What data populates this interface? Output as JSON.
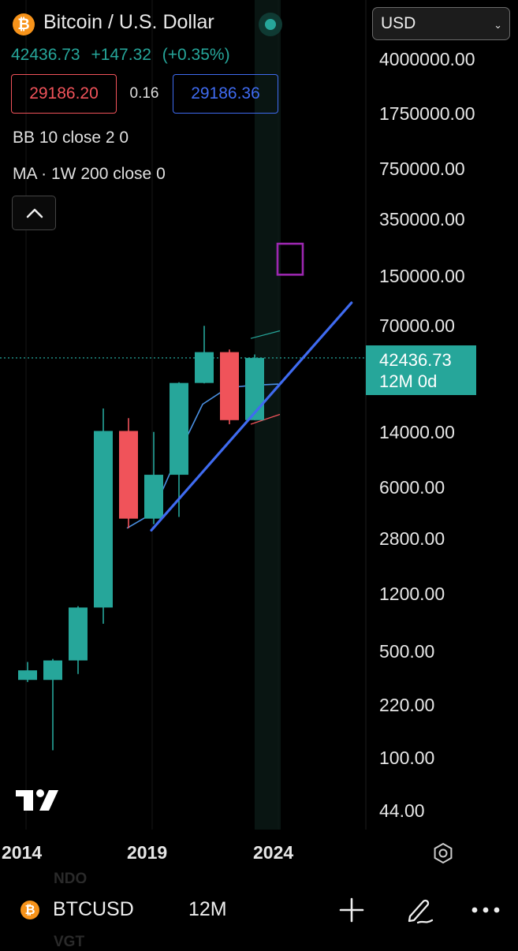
{
  "header": {
    "title": "Bitcoin / U.S. Dollar",
    "logo_icon": "bitcoin-logo-icon",
    "logo_glyph": "₿",
    "currency": "USD",
    "last_price": "42436.73",
    "change": "+147.32",
    "change_pct": "(+0.35%)",
    "bid": "29186.20",
    "spread": "0.16",
    "ask": "29186.36"
  },
  "indicators": [
    "BB 10 close 2 0",
    "MA · 1W 200 close 0"
  ],
  "price_tag": {
    "price": "42436.73",
    "countdown": "12M 0d"
  },
  "y_axis_labels": [
    "4000000.00",
    "1750000.00",
    "750000.00",
    "350000.00",
    "150000.00",
    "70000.00",
    "14000.00",
    "6000.00",
    "2800.00",
    "1200.00",
    "500.00",
    "220.00",
    "100.00",
    "44.00"
  ],
  "x_axis_labels": [
    "2014",
    "2019",
    "2024"
  ],
  "bottom_bar": {
    "symbol": "BTCUSD",
    "interval": "12M",
    "ghost_top": "NDQ",
    "ghost_bottom": "VGT"
  },
  "colors": {
    "up": "#26a69a",
    "down": "#f0535a",
    "trendline": "#3f6bf0",
    "ma_line": "#4a90e2",
    "box": "#9c27b0"
  },
  "chart_data": {
    "type": "candlestick",
    "scale": "log",
    "ylim": [
      44,
      4000000
    ],
    "candles": [
      {
        "x": 2014,
        "open": 320,
        "high": 420,
        "low": 310,
        "close": 370
      },
      {
        "x": 2015,
        "open": 320,
        "high": 440,
        "low": 110,
        "close": 430
      },
      {
        "x": 2016,
        "open": 430,
        "high": 980,
        "low": 350,
        "close": 960
      },
      {
        "x": 2017,
        "open": 960,
        "high": 19700,
        "low": 750,
        "close": 14000
      },
      {
        "x": 2018,
        "open": 14000,
        "high": 17000,
        "low": 3200,
        "close": 3700
      },
      {
        "x": 2019,
        "open": 3700,
        "high": 13800,
        "low": 3400,
        "close": 7200
      },
      {
        "x": 2020,
        "open": 7200,
        "high": 29300,
        "low": 3800,
        "close": 29000
      },
      {
        "x": 2021,
        "open": 29000,
        "high": 69000,
        "low": 28800,
        "close": 46300
      },
      {
        "x": 2022,
        "open": 46300,
        "high": 48200,
        "low": 15500,
        "close": 16500
      },
      {
        "x": 2023,
        "open": 16500,
        "high": 44700,
        "low": 16500,
        "close": 42436.73
      }
    ],
    "moving_average": [
      {
        "x": 2018,
        "y": 3200
      },
      {
        "x": 2019,
        "y": 4000
      },
      {
        "x": 2020,
        "y": 9500
      },
      {
        "x": 2021,
        "y": 21000
      },
      {
        "x": 2022,
        "y": 27000
      },
      {
        "x": 2023,
        "y": 28000
      },
      {
        "x": 2024,
        "y": 28500
      }
    ],
    "trendline": [
      {
        "x": 2019,
        "y": 3100
      },
      {
        "x": 2026.9,
        "y": 98000
      }
    ],
    "box": {
      "x0": 2024,
      "x1": 2025,
      "y_low": 150000,
      "y_high": 240000
    }
  }
}
